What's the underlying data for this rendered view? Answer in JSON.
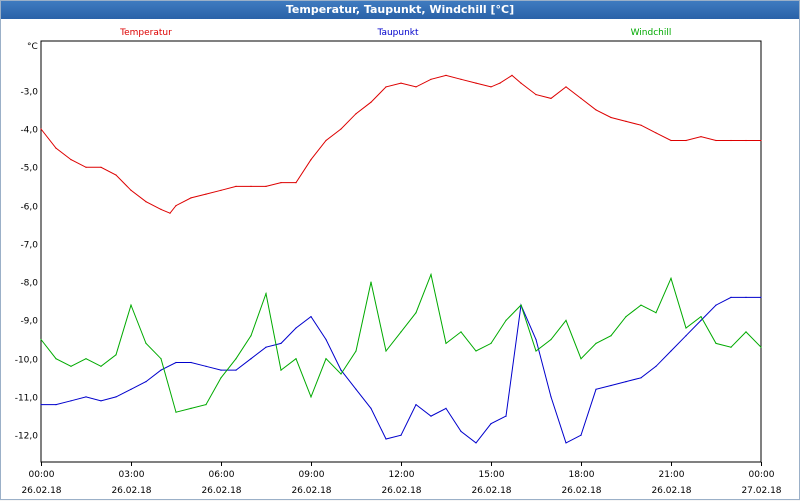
{
  "window": {
    "title": "Temperatur, Taupunkt, Windchill [°C]"
  },
  "chart_data": {
    "type": "line",
    "title": "Temperatur, Taupunkt, Windchill [°C]",
    "ylabel": "°C",
    "xlabel": "",
    "ylim": [
      -12.7,
      -1.7
    ],
    "xlim": [
      0,
      24
    ],
    "grid": true,
    "legend": "top",
    "y_ticks": [
      -3.0,
      -4.0,
      -5.0,
      -6.0,
      -7.0,
      -8.0,
      -9.0,
      -10.0,
      -11.0,
      -12.0
    ],
    "y_tick_labels": [
      "-3,0",
      "-4,0",
      "-5,0",
      "-6,0",
      "-7,0",
      "-8,0",
      "-9,0",
      "-10,0",
      "-11,0",
      "-12,0"
    ],
    "x_ticks": [
      0,
      3,
      6,
      9,
      12,
      15,
      18,
      21,
      24
    ],
    "x_tick_labels": [
      {
        "time": "00:00",
        "date": "26.02.18"
      },
      {
        "time": "03:00",
        "date": "26.02.18"
      },
      {
        "time": "06:00",
        "date": "26.02.18"
      },
      {
        "time": "09:00",
        "date": "26.02.18"
      },
      {
        "time": "12:00",
        "date": "26.02.18"
      },
      {
        "time": "15:00",
        "date": "26.02.18"
      },
      {
        "time": "18:00",
        "date": "26.02.18"
      },
      {
        "time": "21:00",
        "date": "26.02.18"
      },
      {
        "time": "00:00",
        "date": "27.02.18"
      }
    ],
    "series": [
      {
        "name": "Temperatur",
        "color": "#dd0000",
        "x": [
          0,
          0.5,
          1,
          1.5,
          2,
          2.5,
          3,
          3.5,
          4,
          4.3,
          4.5,
          5,
          5.5,
          6,
          6.5,
          7,
          7.5,
          8,
          8.5,
          9,
          9.5,
          10,
          10.5,
          11,
          11.5,
          12,
          12.5,
          13,
          13.5,
          14,
          14.5,
          15,
          15.3,
          15.7,
          16,
          16.5,
          17,
          17.5,
          18,
          18.5,
          19,
          19.5,
          20,
          20.5,
          21,
          21.5,
          22,
          22.5,
          23,
          23.5,
          24
        ],
        "values": [
          -4.0,
          -4.5,
          -4.8,
          -5.0,
          -5.0,
          -5.2,
          -5.6,
          -5.9,
          -6.1,
          -6.2,
          -6.0,
          -5.8,
          -5.7,
          -5.6,
          -5.5,
          -5.5,
          -5.5,
          -5.4,
          -5.4,
          -4.8,
          -4.3,
          -4.0,
          -3.6,
          -3.3,
          -2.9,
          -2.8,
          -2.9,
          -2.7,
          -2.6,
          -2.7,
          -2.8,
          -2.9,
          -2.8,
          -2.6,
          -2.8,
          -3.1,
          -3.2,
          -2.9,
          -3.2,
          -3.5,
          -3.7,
          -3.8,
          -3.9,
          -4.1,
          -4.3,
          -4.3,
          -4.2,
          -4.3,
          -4.3,
          -4.3,
          -4.3
        ]
      },
      {
        "name": "Taupunkt",
        "color": "#0000cc",
        "x": [
          0,
          0.5,
          1,
          1.5,
          2,
          2.5,
          3,
          3.5,
          4,
          4.5,
          5,
          5.5,
          6,
          6.5,
          7,
          7.5,
          8,
          8.5,
          9,
          9.5,
          10,
          10.5,
          11,
          11.5,
          12,
          12.5,
          13,
          13.5,
          14,
          14.5,
          15,
          15.5,
          16,
          16.5,
          17,
          17.5,
          18,
          18.5,
          19,
          19.5,
          20,
          20.5,
          21,
          21.5,
          22,
          22.5,
          23,
          23.5,
          24
        ],
        "values": [
          -11.2,
          -11.2,
          -11.1,
          -11.0,
          -11.1,
          -11.0,
          -10.8,
          -10.6,
          -10.3,
          -10.1,
          -10.1,
          -10.2,
          -10.3,
          -10.3,
          -10.0,
          -9.7,
          -9.6,
          -9.2,
          -8.9,
          -9.5,
          -10.3,
          -10.8,
          -11.3,
          -12.1,
          -12.0,
          -11.2,
          -11.5,
          -11.3,
          -11.9,
          -12.2,
          -11.7,
          -11.5,
          -8.6,
          -9.5,
          -11.0,
          -12.2,
          -12.0,
          -10.8,
          -10.7,
          -10.6,
          -10.5,
          -10.2,
          -9.8,
          -9.4,
          -9.0,
          -8.6,
          -8.4,
          -8.4,
          -8.4
        ]
      },
      {
        "name": "Windchill",
        "color": "#00aa00",
        "x": [
          0,
          0.5,
          1,
          1.5,
          2,
          2.5,
          3,
          3.5,
          4,
          4.5,
          5,
          5.5,
          6,
          6.5,
          7,
          7.5,
          8,
          8.5,
          9,
          9.5,
          10,
          10.5,
          11,
          11.5,
          12,
          12.5,
          13,
          13.5,
          14,
          14.5,
          15,
          15.5,
          16,
          16.5,
          17,
          17.5,
          18,
          18.5,
          19,
          19.5,
          20,
          20.5,
          21,
          21.5,
          22,
          22.5,
          23,
          23.5,
          24
        ],
        "values": [
          -9.5,
          -10.0,
          -10.2,
          -10.0,
          -10.2,
          -9.9,
          -8.6,
          -9.6,
          -10.0,
          -11.4,
          -11.3,
          -11.2,
          -10.5,
          -10.0,
          -9.4,
          -8.3,
          -10.3,
          -10.0,
          -11.0,
          -10.0,
          -10.4,
          -9.8,
          -8.0,
          -9.8,
          -9.3,
          -8.8,
          -7.8,
          -9.6,
          -9.3,
          -9.8,
          -9.6,
          -9.0,
          -8.6,
          -9.8,
          -9.5,
          -9.0,
          -10.0,
          -9.6,
          -9.4,
          -8.9,
          -8.6,
          -8.8,
          -7.9,
          -9.2,
          -8.9,
          -9.6,
          -9.7,
          -9.3,
          -9.7
        ]
      }
    ]
  }
}
